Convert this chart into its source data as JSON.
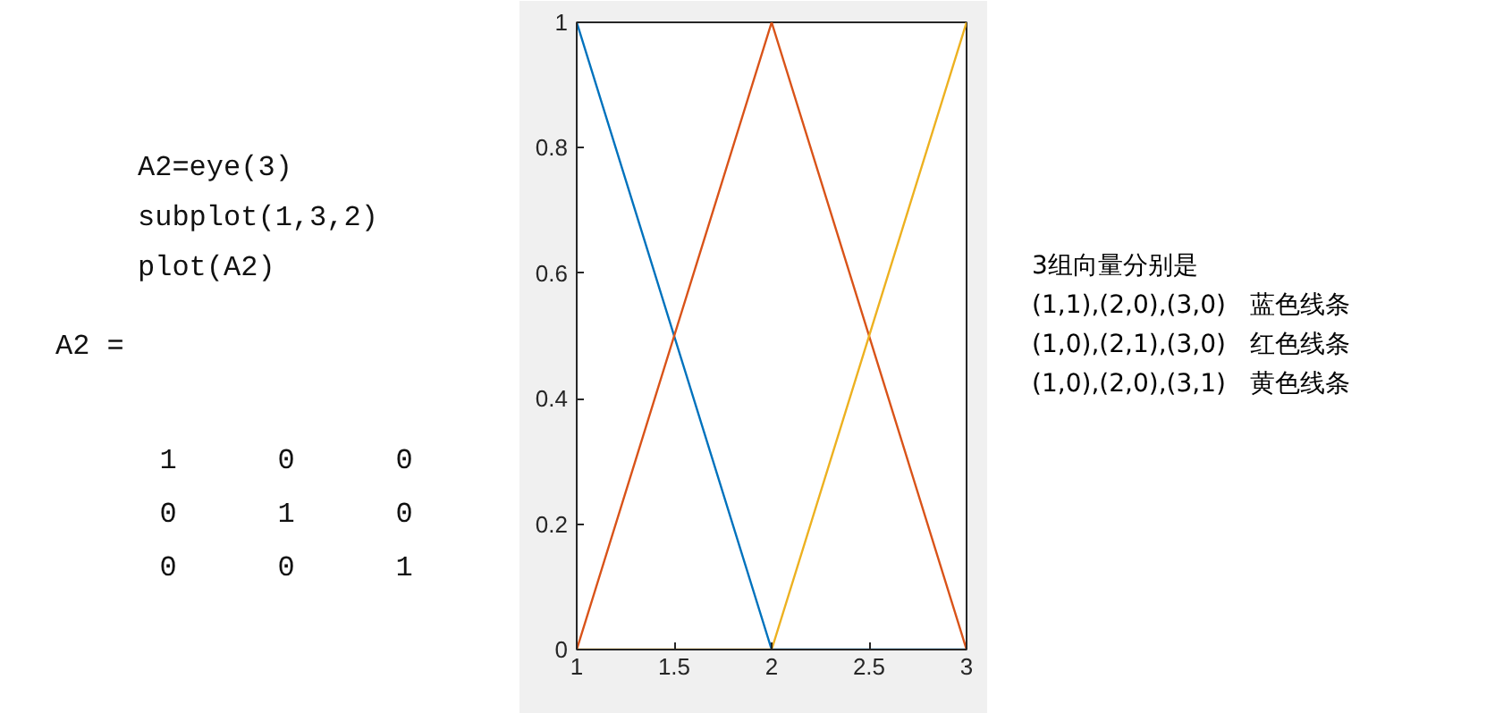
{
  "chart_data": {
    "type": "line",
    "x": [
      1,
      2,
      3
    ],
    "series": [
      {
        "color": "#0072bd",
        "values": [
          1,
          0,
          0
        ]
      },
      {
        "color": "#d95319",
        "values": [
          0,
          1,
          0
        ]
      },
      {
        "color": "#edb120",
        "values": [
          0,
          0,
          1
        ]
      }
    ],
    "xlim": [
      1,
      3
    ],
    "xticks": [
      1,
      1.5,
      2,
      2.5,
      3
    ],
    "ylim": [
      0,
      1
    ],
    "yticks": [
      0,
      0.2,
      0.4,
      0.6,
      0.8,
      1
    ],
    "grid": false,
    "marker": "none",
    "line_style": "solid",
    "annotations": [
      "A2=eye(3)",
      "subplot(1,3,2)",
      "plot(A2)",
      "A2 =",
      "1 0 0",
      "0 1 0",
      "0 0 1",
      "3组向量分别是",
      "(1,1),(2,0),(3,0) 蓝色线条",
      "(1,0),(2,1),(3,0) 红色线条",
      "(1,0),(2,0),(3,1) 黄色线条"
    ]
  }
}
